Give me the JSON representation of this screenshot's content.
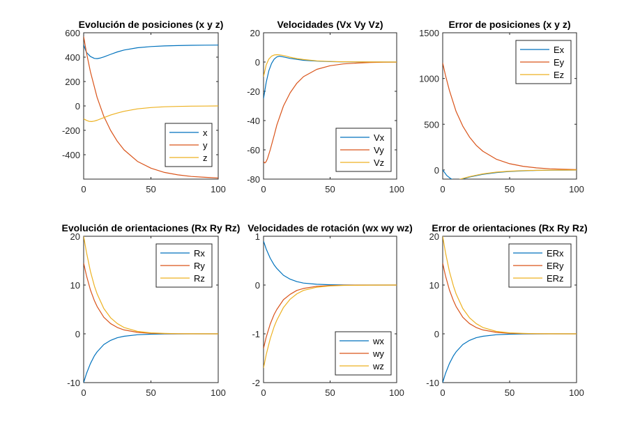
{
  "colors": {
    "series1": "#0072BD",
    "series2": "#D95319",
    "series3": "#EDB120",
    "axis": "#262626"
  },
  "chart_data": [
    {
      "type": "line",
      "title": "Evolución de posiciones (x y z)",
      "xlim": [
        0,
        100
      ],
      "ylim": [
        -600,
        600
      ],
      "xticks": [
        0,
        50,
        100
      ],
      "xtick_labels": [
        "0",
        "50",
        "100"
      ],
      "yticks": [
        600,
        400,
        200,
        0,
        -200,
        -400
      ],
      "ytick_labels": [
        "600",
        "400",
        "200",
        "0",
        "-200",
        "-400"
      ],
      "legend": "bottom-right",
      "series": [
        {
          "name": "x",
          "color": "#0072BD",
          "x": [
            0,
            2,
            5,
            8,
            10,
            12,
            15,
            20,
            25,
            30,
            40,
            50,
            60,
            70,
            80,
            90,
            100
          ],
          "y": [
            500,
            440,
            405,
            390,
            388,
            392,
            402,
            423,
            443,
            458,
            477,
            487,
            492,
            495,
            497,
            498,
            499
          ]
        },
        {
          "name": "y",
          "color": "#D95319",
          "x": [
            0,
            2,
            5,
            10,
            15,
            20,
            25,
            30,
            40,
            50,
            60,
            70,
            80,
            90,
            100
          ],
          "y": [
            570,
            440,
            280,
            70,
            -85,
            -200,
            -290,
            -360,
            -455,
            -510,
            -545,
            -565,
            -578,
            -585,
            -590
          ]
        },
        {
          "name": "z",
          "color": "#EDB120",
          "x": [
            0,
            2,
            4,
            6,
            8,
            10,
            15,
            20,
            25,
            30,
            40,
            50,
            60,
            70,
            80,
            90,
            100
          ],
          "y": [
            -105,
            -118,
            -126,
            -128,
            -124,
            -117,
            -96,
            -75,
            -58,
            -44,
            -24,
            -13,
            -7,
            -4,
            -2,
            -1,
            0
          ]
        }
      ]
    },
    {
      "type": "line",
      "title": "Velocidades (Vx Vy Vz)",
      "xlim": [
        0,
        100
      ],
      "ylim": [
        -80,
        20
      ],
      "xticks": [
        0,
        50,
        100
      ],
      "xtick_labels": [
        "0",
        "50",
        "100"
      ],
      "yticks": [
        20,
        0,
        -20,
        -40,
        -60,
        -80
      ],
      "ytick_labels": [
        "20",
        "0",
        "-20",
        "-40",
        "-60",
        "-80"
      ],
      "legend": "bottom-right",
      "series": [
        {
          "name": "Vx",
          "color": "#0072BD",
          "x": [
            0,
            2,
            4,
            6,
            8,
            10,
            12,
            15,
            20,
            25,
            30,
            40,
            50,
            60,
            80,
            100
          ],
          "y": [
            -25,
            -14,
            -6,
            -1,
            2,
            3.5,
            4,
            3.5,
            2.5,
            1.8,
            1.2,
            0.6,
            0.3,
            0.1,
            0,
            0
          ]
        },
        {
          "name": "Vy",
          "color": "#D95319",
          "x": [
            0,
            1,
            2,
            3,
            5,
            8,
            10,
            15,
            20,
            25,
            30,
            40,
            50,
            60,
            70,
            80,
            90,
            100
          ],
          "y": [
            -68,
            -69,
            -68,
            -66,
            -60,
            -50,
            -43,
            -30,
            -21,
            -14.5,
            -10,
            -5,
            -2.5,
            -1.3,
            -0.7,
            -0.3,
            -0.15,
            -0.05
          ]
        },
        {
          "name": "Vz",
          "color": "#EDB120",
          "x": [
            0,
            2,
            4,
            6,
            8,
            10,
            12,
            14,
            17,
            20,
            25,
            30,
            40,
            50,
            60,
            80,
            100
          ],
          "y": [
            -10,
            -2,
            2,
            4,
            4.8,
            5,
            4.9,
            4.6,
            4,
            3.3,
            2.4,
            1.7,
            0.8,
            0.4,
            0.2,
            0.05,
            0
          ]
        }
      ]
    },
    {
      "type": "line",
      "title": "Error de posiciones (x y z)",
      "xlim": [
        0,
        100
      ],
      "ylim": [
        -100,
        1500
      ],
      "xticks": [
        0,
        50,
        100
      ],
      "xtick_labels": [
        "0",
        "50",
        "100"
      ],
      "yticks": [
        1500,
        1000,
        500,
        0
      ],
      "ytick_labels": [
        "1500",
        "1000",
        "500",
        "0"
      ],
      "legend": "top-right",
      "series": [
        {
          "name": "Ex",
          "color": "#0072BD",
          "x": [
            0,
            3,
            6,
            8,
            10,
            12,
            15,
            20,
            25,
            30,
            40,
            50,
            60,
            70,
            80,
            90,
            100
          ],
          "y": [
            0,
            -60,
            -95,
            -108,
            -110,
            -106,
            -97,
            -78,
            -62,
            -48,
            -28,
            -16,
            -9,
            -5,
            -3,
            -1.5,
            -1
          ]
        },
        {
          "name": "Ey",
          "color": "#D95319",
          "x": [
            0,
            2,
            5,
            10,
            15,
            20,
            25,
            30,
            40,
            50,
            60,
            70,
            80,
            90,
            100
          ],
          "y": [
            1170,
            1040,
            870,
            640,
            480,
            360,
            270,
            205,
            118,
            68,
            40,
            23,
            13,
            8,
            4
          ]
        },
        {
          "name": "Ez",
          "color": "#EDB120",
          "x": [
            0,
            2,
            4,
            6,
            8,
            10,
            15,
            20,
            25,
            30,
            40,
            50,
            60,
            70,
            80,
            90,
            100
          ],
          "y": [
            -105,
            -115,
            -122,
            -124,
            -120,
            -113,
            -93,
            -73,
            -57,
            -43,
            -24,
            -13,
            -7,
            -4,
            -2,
            -1,
            0
          ]
        }
      ]
    },
    {
      "type": "line",
      "title": "Evolución de orientaciones (Rx Ry Rz)",
      "xlim": [
        0,
        100
      ],
      "ylim": [
        -10,
        20
      ],
      "xticks": [
        0,
        50,
        100
      ],
      "xtick_labels": [
        "0",
        "50",
        "100"
      ],
      "yticks": [
        20,
        10,
        0,
        -10
      ],
      "ytick_labels": [
        "20",
        "10",
        "0",
        "-10"
      ],
      "legend": "top-right",
      "series": [
        {
          "name": "Rx",
          "color": "#0072BD",
          "x": [
            0,
            2,
            5,
            8,
            10,
            15,
            20,
            25,
            30,
            40,
            50,
            60,
            70,
            80,
            100
          ],
          "y": [
            -10,
            -8.2,
            -6.1,
            -4.5,
            -3.7,
            -2.2,
            -1.35,
            -0.8,
            -0.5,
            -0.18,
            -0.07,
            -0.02,
            -0.01,
            0,
            0
          ]
        },
        {
          "name": "Ry",
          "color": "#D95319",
          "x": [
            0,
            2,
            5,
            8,
            10,
            15,
            20,
            25,
            30,
            40,
            50,
            60,
            70,
            80,
            100
          ],
          "y": [
            14.5,
            12,
            9,
            6.8,
            5.6,
            3.4,
            2.1,
            1.3,
            0.8,
            0.3,
            0.1,
            0.04,
            0.01,
            0,
            0
          ]
        },
        {
          "name": "Rz",
          "color": "#EDB120",
          "x": [
            0,
            2,
            5,
            8,
            10,
            15,
            20,
            25,
            30,
            40,
            50,
            60,
            70,
            80,
            100
          ],
          "y": [
            20,
            16.8,
            12.8,
            9.8,
            8.2,
            5.2,
            3.3,
            2.1,
            1.3,
            0.5,
            0.2,
            0.08,
            0.03,
            0.01,
            0
          ]
        }
      ]
    },
    {
      "type": "line",
      "title": "Velocidades de rotación (wx wy wz)",
      "xlim": [
        0,
        100
      ],
      "ylim": [
        -2,
        1
      ],
      "xticks": [
        0,
        50,
        100
      ],
      "xtick_labels": [
        "0",
        "50",
        "100"
      ],
      "yticks": [
        1,
        0,
        -1,
        -2
      ],
      "ytick_labels": [
        "1",
        "0",
        "-1",
        "-2"
      ],
      "legend": "bottom-right",
      "series": [
        {
          "name": "wx",
          "color": "#0072BD",
          "x": [
            0,
            2,
            5,
            8,
            10,
            15,
            20,
            25,
            30,
            40,
            50,
            60,
            80,
            100
          ],
          "y": [
            0.9,
            0.74,
            0.55,
            0.41,
            0.34,
            0.2,
            0.12,
            0.07,
            0.04,
            0.015,
            0.005,
            0.002,
            0,
            0
          ]
        },
        {
          "name": "wy",
          "color": "#D95319",
          "x": [
            0,
            2,
            5,
            8,
            10,
            15,
            20,
            25,
            30,
            40,
            50,
            60,
            80,
            100
          ],
          "y": [
            -1.3,
            -1.07,
            -0.8,
            -0.6,
            -0.5,
            -0.3,
            -0.19,
            -0.11,
            -0.07,
            -0.025,
            -0.01,
            -0.003,
            0,
            0
          ]
        },
        {
          "name": "wz",
          "color": "#EDB120",
          "x": [
            0,
            2,
            5,
            8,
            10,
            15,
            20,
            25,
            30,
            40,
            50,
            60,
            80,
            100
          ],
          "y": [
            -1.7,
            -1.43,
            -1.1,
            -0.85,
            -0.72,
            -0.46,
            -0.29,
            -0.18,
            -0.11,
            -0.045,
            -0.018,
            -0.007,
            -0.001,
            0
          ]
        }
      ]
    },
    {
      "type": "line",
      "title": "Error de orientaciones (Rx Ry Rz)",
      "xlim": [
        0,
        100
      ],
      "ylim": [
        -10,
        20
      ],
      "xticks": [
        0,
        50,
        100
      ],
      "xtick_labels": [
        "0",
        "50",
        "100"
      ],
      "yticks": [
        20,
        10,
        0,
        -10
      ],
      "ytick_labels": [
        "20",
        "10",
        "0",
        "-10"
      ],
      "legend": "top-right",
      "series": [
        {
          "name": "ERx",
          "color": "#0072BD",
          "x": [
            0,
            2,
            5,
            8,
            10,
            15,
            20,
            25,
            30,
            40,
            50,
            60,
            70,
            80,
            100
          ],
          "y": [
            -10,
            -8.2,
            -6.1,
            -4.5,
            -3.7,
            -2.2,
            -1.35,
            -0.8,
            -0.5,
            -0.18,
            -0.07,
            -0.02,
            -0.01,
            0,
            0
          ]
        },
        {
          "name": "ERy",
          "color": "#D95319",
          "x": [
            0,
            2,
            5,
            8,
            10,
            15,
            20,
            25,
            30,
            40,
            50,
            60,
            70,
            80,
            100
          ],
          "y": [
            14.5,
            12,
            9,
            6.8,
            5.6,
            3.4,
            2.1,
            1.3,
            0.8,
            0.3,
            0.1,
            0.04,
            0.01,
            0,
            0
          ]
        },
        {
          "name": "ERz",
          "color": "#EDB120",
          "x": [
            0,
            2,
            5,
            8,
            10,
            15,
            20,
            25,
            30,
            40,
            50,
            60,
            70,
            80,
            100
          ],
          "y": [
            20,
            16.8,
            12.8,
            9.8,
            8.2,
            5.2,
            3.3,
            2.1,
            1.3,
            0.5,
            0.2,
            0.08,
            0.03,
            0.01,
            0
          ]
        }
      ]
    }
  ]
}
